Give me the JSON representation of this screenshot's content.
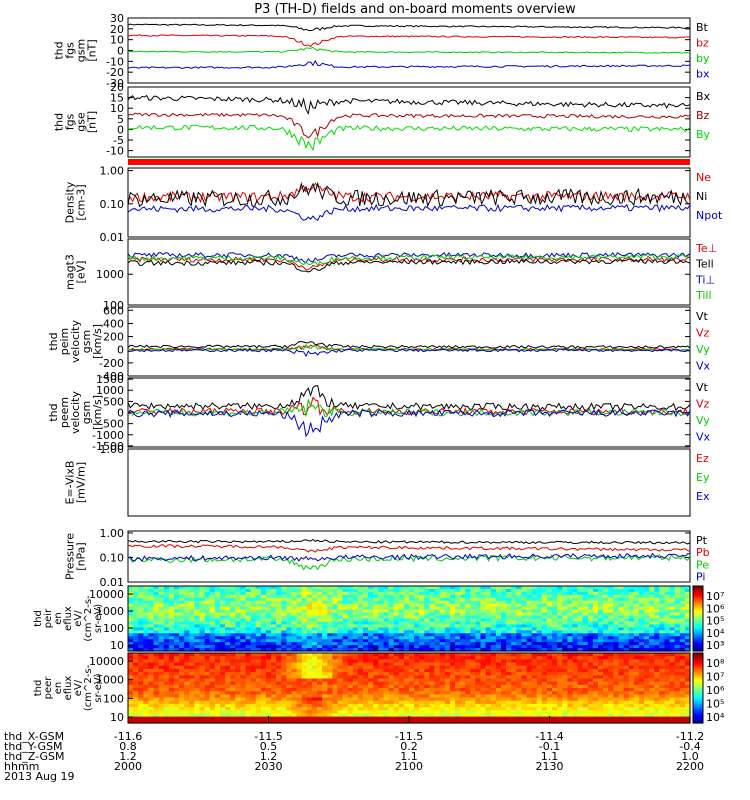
{
  "chart_data": {
    "type": "line",
    "title": "P3 (TH-D) fields and on-board moments overview",
    "panels": [
      {
        "id": "fgs",
        "ylabel": [
          "thd",
          "fgs",
          "gsm",
          "[nT]"
        ],
        "yrange": [
          -30,
          30
        ],
        "scale": "linear",
        "ticks": [
          {
            "v": 30,
            "t": "30"
          },
          {
            "v": 20,
            "t": "20"
          },
          {
            "v": 10,
            "t": "10"
          },
          {
            "v": 0,
            "t": "0"
          },
          {
            "v": -10,
            "t": "-10"
          },
          {
            "v": -20,
            "t": "-20"
          },
          {
            "v": -30,
            "t": "-30"
          }
        ],
        "series": [
          {
            "name": "Bt",
            "color": "#000000",
            "base": 24,
            "noise": 0.6,
            "dip": -4,
            "end": 21
          },
          {
            "name": "bz",
            "color": "#dd0000",
            "base": 14,
            "noise": 0.6,
            "dip": -8,
            "end": 12
          },
          {
            "name": "by",
            "color": "#00cc00",
            "base": -1,
            "noise": 0.5,
            "dip": 3,
            "end": -2
          },
          {
            "name": "bx",
            "color": "#0000cc",
            "base": -16,
            "noise": 0.8,
            "dip": 4,
            "end": -14
          }
        ]
      },
      {
        "id": "fgs2",
        "ylabel": [
          "thd",
          "fgs",
          "gse",
          "[nT]"
        ],
        "yrange": [
          -13,
          20
        ],
        "scale": "linear",
        "ticks": [
          {
            "v": 20,
            "t": "20"
          },
          {
            "v": 15,
            "t": "15"
          },
          {
            "v": 10,
            "t": "10"
          },
          {
            "v": 5,
            "t": "5"
          },
          {
            "v": 0,
            "t": "0"
          },
          {
            "v": -5,
            "t": "-5"
          },
          {
            "v": -10,
            "t": "-10"
          }
        ],
        "series": [
          {
            "name": "Bx",
            "color": "#000000",
            "base": 15,
            "noise": 1.2,
            "dip": -3,
            "end": 11
          },
          {
            "name": "Bz",
            "color": "#aa0000",
            "base": 7,
            "noise": 0.8,
            "dip": -9,
            "end": 6
          },
          {
            "name": "By",
            "color": "#00dd00",
            "base": 1,
            "noise": 1.2,
            "dip": -8,
            "end": 0
          }
        ]
      },
      {
        "id": "density",
        "ylabel": [
          "Density",
          "[cm-3]"
        ],
        "yrange": [
          0.01,
          1.2
        ],
        "scale": "log",
        "ticks": [
          {
            "v": 1,
            "t": "1.00"
          },
          {
            "v": 0.1,
            "t": "0.10"
          },
          {
            "v": 0.01,
            "t": "0.01"
          }
        ],
        "series": [
          {
            "name": "Ne",
            "color": "#dd0000",
            "base": 0.16,
            "noise": 0.15,
            "dip": 0.5,
            "end": 0.17
          },
          {
            "name": "Ni",
            "color": "#000000",
            "base": 0.14,
            "noise": 0.25,
            "dip": 0.5,
            "end": 0.16
          },
          {
            "name": "Npot",
            "color": "#0000cc",
            "base": 0.07,
            "noise": 0.1,
            "dip": -0.5,
            "end": 0.075
          }
        ]
      },
      {
        "id": "magt3",
        "ylabel": [
          "magt3",
          "[eV]"
        ],
        "yrange": [
          100,
          14000
        ],
        "scale": "log",
        "ticks": [
          {
            "v": 1000,
            "t": "1000"
          },
          {
            "v": 100,
            "t": "100"
          }
        ],
        "series": [
          {
            "name": "Te⊥",
            "color": "#dd0000",
            "base": 3000,
            "noise": 0.08,
            "dip": -0.45,
            "end": 3000
          },
          {
            "name": "Tell",
            "color": "#000000",
            "base": 2300,
            "noise": 0.08,
            "dip": -0.45,
            "end": 2700
          },
          {
            "name": "Ti⊥",
            "color": "#0000cc",
            "base": 4200,
            "noise": 0.08,
            "dip": -0.3,
            "end": 4200
          },
          {
            "name": "Till",
            "color": "#00cc00",
            "base": 3300,
            "noise": 0.08,
            "dip": -0.35,
            "end": 3700
          }
        ]
      },
      {
        "id": "peim",
        "ylabel": [
          "thd",
          "peim",
          "velocity",
          "gsm",
          "[km/s]"
        ],
        "yrange": [
          -400,
          650
        ],
        "scale": "linear",
        "ticks": [
          {
            "v": 600,
            "t": "600"
          },
          {
            "v": 400,
            "t": "400"
          },
          {
            "v": 200,
            "t": "200"
          },
          {
            "v": 0,
            "t": "0"
          },
          {
            "v": -200,
            "t": "-200"
          },
          {
            "v": -400,
            "t": "-400"
          }
        ],
        "series": [
          {
            "name": "Vt",
            "color": "#000000",
            "base": 50,
            "noise": 20,
            "dip": 60,
            "end": 40
          },
          {
            "name": "Vz",
            "color": "#dd0000",
            "base": 10,
            "noise": 15,
            "dip": 40,
            "end": 5
          },
          {
            "name": "Vy",
            "color": "#00cc00",
            "base": 5,
            "noise": 15,
            "dip": 30,
            "end": 0
          },
          {
            "name": "Vx",
            "color": "#0000cc",
            "base": -10,
            "noise": 20,
            "dip": -60,
            "end": -10
          }
        ]
      },
      {
        "id": "peem",
        "ylabel": [
          "thd",
          "peem",
          "velocity",
          "gsm",
          "[km/s]"
        ],
        "yrange": [
          -1550,
          1550
        ],
        "scale": "linear",
        "ticks": [
          {
            "v": 1500,
            "t": "1500"
          },
          {
            "v": 1000,
            "t": "1000"
          },
          {
            "v": 500,
            "t": "500"
          },
          {
            "v": 0,
            "t": "0"
          },
          {
            "v": -500,
            "t": "-500"
          },
          {
            "v": -1000,
            "t": "-1000"
          },
          {
            "v": -1500,
            "t": "-1500"
          }
        ],
        "series": [
          {
            "name": "Vt",
            "color": "#000000",
            "base": 300,
            "noise": 150,
            "dip": 600,
            "end": 250
          },
          {
            "name": "Vz",
            "color": "#dd0000",
            "base": 50,
            "noise": 150,
            "dip": 300,
            "end": 40
          },
          {
            "name": "Vy",
            "color": "#00cc00",
            "base": 0,
            "noise": 150,
            "dip": 200,
            "end": 0
          },
          {
            "name": "Vx",
            "color": "#0000cc",
            "base": -50,
            "noise": 150,
            "dip": -700,
            "end": -30
          }
        ]
      },
      {
        "id": "efield",
        "ylabel": [
          "E=-VixB",
          "[mV/m]"
        ],
        "yrange": [
          0,
          1
        ],
        "scale": "linear",
        "ticks": [
          {
            "v": 1,
            "t": "1.00"
          }
        ],
        "series": [
          {
            "name": "Ez",
            "color": "#dd0000",
            "empty": true
          },
          {
            "name": "Ey",
            "color": "#00cc00",
            "empty": true
          },
          {
            "name": "Ex",
            "color": "#0000cc",
            "empty": true
          }
        ]
      },
      {
        "id": "pressure",
        "ylabel": [
          "Pressure",
          "[nPa]"
        ],
        "yrange": [
          0.01,
          1.2
        ],
        "scale": "log",
        "ticks": [
          {
            "v": 1,
            "t": "1.00"
          },
          {
            "v": 0.1,
            "t": "0.10"
          },
          {
            "v": 0.01,
            "t": "0.01"
          }
        ],
        "series": [
          {
            "name": "Pt",
            "color": "#000000",
            "base": 0.45,
            "noise": 0.05,
            "dip": 0.1,
            "end": 0.4
          },
          {
            "name": "Pb",
            "color": "#dd0000",
            "base": 0.3,
            "noise": 0.06,
            "dip": -0.3,
            "end": 0.2
          },
          {
            "name": "Pe",
            "color": "#00cc00",
            "base": 0.08,
            "noise": 0.12,
            "dip": -0.6,
            "end": 0.1
          },
          {
            "name": "Pi",
            "color": "#0000cc",
            "base": 0.09,
            "noise": 0.1,
            "dip": -0.1,
            "end": 0.12
          }
        ]
      }
    ],
    "spectrograms": [
      {
        "id": "peir",
        "ylabel": [
          "thd",
          "peir",
          "en",
          "eflux",
          "eV/",
          "(cm^2-s-",
          "sr-eV)"
        ],
        "yticks": [
          "10000",
          "1000",
          "100",
          "10"
        ],
        "cbar_ticks": [
          "10⁷",
          "10⁶",
          "10⁵",
          "10⁴",
          "10³"
        ],
        "kind": "ion"
      },
      {
        "id": "peer",
        "ylabel": [
          "thd",
          "peer",
          "en",
          "eflux",
          "eV/",
          "(cm^2-s-",
          "sr-eV)"
        ],
        "yticks": [
          "10000",
          "1000",
          "100",
          "10"
        ],
        "cbar_ticks": [
          "10⁸",
          "10⁷",
          "10⁶",
          "10⁵",
          "10⁴"
        ],
        "kind": "electron"
      }
    ],
    "xaxis": {
      "rows": [
        {
          "label": "thd_X-GSM",
          "ticks": [
            "-11.6",
            "-11.5",
            "-11.5",
            "-11.4",
            "-11.2"
          ]
        },
        {
          "label": "thd_Y-GSM",
          "ticks": [
            "0.8",
            "0.5",
            "0.2",
            "-0.1",
            "-0.4"
          ]
        },
        {
          "label": "thd_Z-GSM",
          "ticks": [
            "1.2",
            "1.2",
            "1.1",
            "1.1",
            "1.0"
          ]
        },
        {
          "label": "hhmm",
          "ticks": [
            "2000",
            "2030",
            "2100",
            "2130",
            "2200"
          ]
        }
      ],
      "date": "2013 Aug 19",
      "time_range_min": [
        0,
        120
      ],
      "event_min": 39
    }
  }
}
